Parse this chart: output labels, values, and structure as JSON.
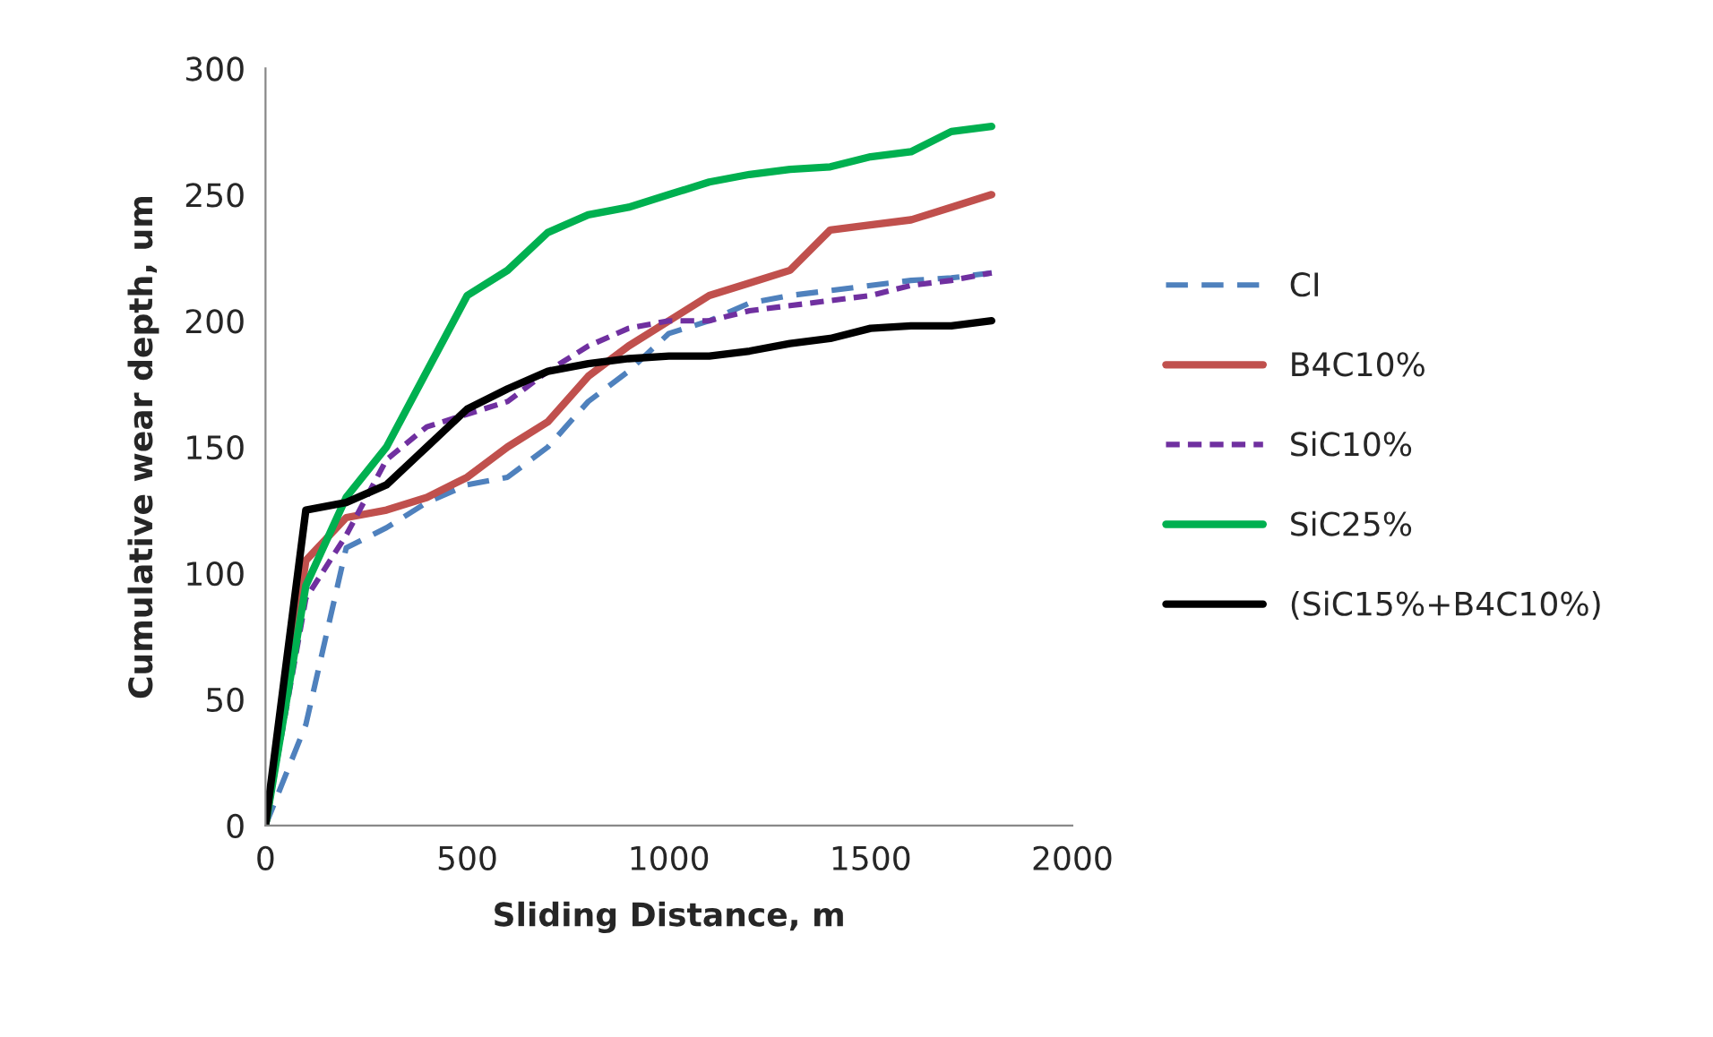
{
  "chart_data": {
    "type": "line",
    "xlabel": "Sliding Distance, m",
    "ylabel": "Cumulative wear depth, um",
    "x": [
      0,
      100,
      200,
      300,
      400,
      500,
      600,
      700,
      800,
      900,
      1000,
      1100,
      1200,
      1300,
      1400,
      1500,
      1600,
      1700,
      1800
    ],
    "series": [
      {
        "name": "CI",
        "color": "#4f81bd",
        "line_style": "dashed",
        "values": [
          0,
          40,
          110,
          118,
          128,
          135,
          138,
          150,
          168,
          180,
          195,
          200,
          207,
          210,
          212,
          214,
          216,
          217,
          219
        ]
      },
      {
        "name": "B4C10%",
        "color": "#c0504d",
        "line_style": "solid",
        "values": [
          0,
          105,
          122,
          125,
          130,
          138,
          150,
          160,
          178,
          190,
          200,
          210,
          215,
          220,
          236,
          238,
          240,
          245,
          250
        ]
      },
      {
        "name": "SiC10%",
        "color": "#7030a0",
        "line_style": "dotted",
        "values": [
          0,
          90,
          115,
          145,
          158,
          163,
          168,
          180,
          190,
          197,
          200,
          200,
          204,
          206,
          208,
          210,
          214,
          216,
          219
        ]
      },
      {
        "name": "SiC25%",
        "color": "#00b050",
        "line_style": "solid",
        "values": [
          0,
          95,
          130,
          150,
          180,
          210,
          220,
          235,
          242,
          245,
          250,
          255,
          258,
          260,
          261,
          265,
          267,
          275,
          277
        ]
      },
      {
        "name": "(SiC15%+B4C10%)",
        "color": "#000000",
        "line_style": "solid",
        "values": [
          0,
          125,
          128,
          135,
          150,
          165,
          173,
          180,
          183,
          185,
          186,
          186,
          188,
          191,
          193,
          197,
          198,
          198,
          200
        ]
      }
    ],
    "xlim": [
      0,
      2000
    ],
    "xticks": [
      0,
      500,
      1000,
      1500,
      2000
    ],
    "ylim": [
      0,
      300
    ],
    "yticks": [
      0,
      50,
      100,
      150,
      200,
      250,
      300
    ],
    "grid": false,
    "legend": "right",
    "marker": "none"
  }
}
